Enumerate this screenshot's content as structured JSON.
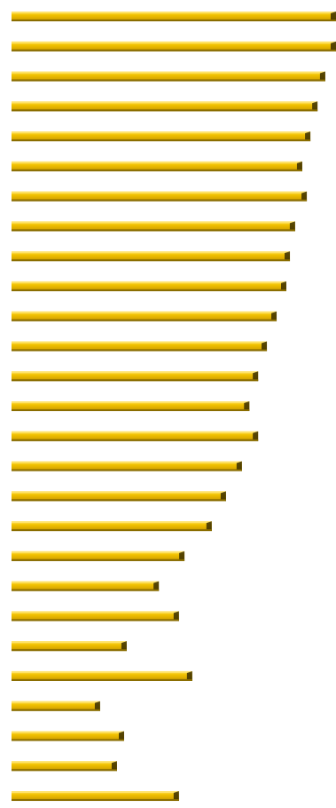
{
  "chart_data": {
    "type": "bar",
    "orientation": "horizontal",
    "title": "",
    "xlabel": "",
    "ylabel": "",
    "grid": false,
    "legend": "none",
    "bar_color": "#F2C200",
    "bar_highlight": "#FFE36A",
    "bar_shadow": "#8A6D00",
    "bar_edge": "#3A2E00",
    "xlim": [
      0,
      100
    ],
    "values": [
      100,
      100,
      96.7,
      94.3,
      92.1,
      89.6,
      91.0,
      87.4,
      85.8,
      84.7,
      81.7,
      78.7,
      76.0,
      73.3,
      76.0,
      71.0,
      66.1,
      61.7,
      53.3,
      45.4,
      51.6,
      35.5,
      55.7,
      27.3,
      34.7,
      32.5,
      51.6
    ]
  }
}
